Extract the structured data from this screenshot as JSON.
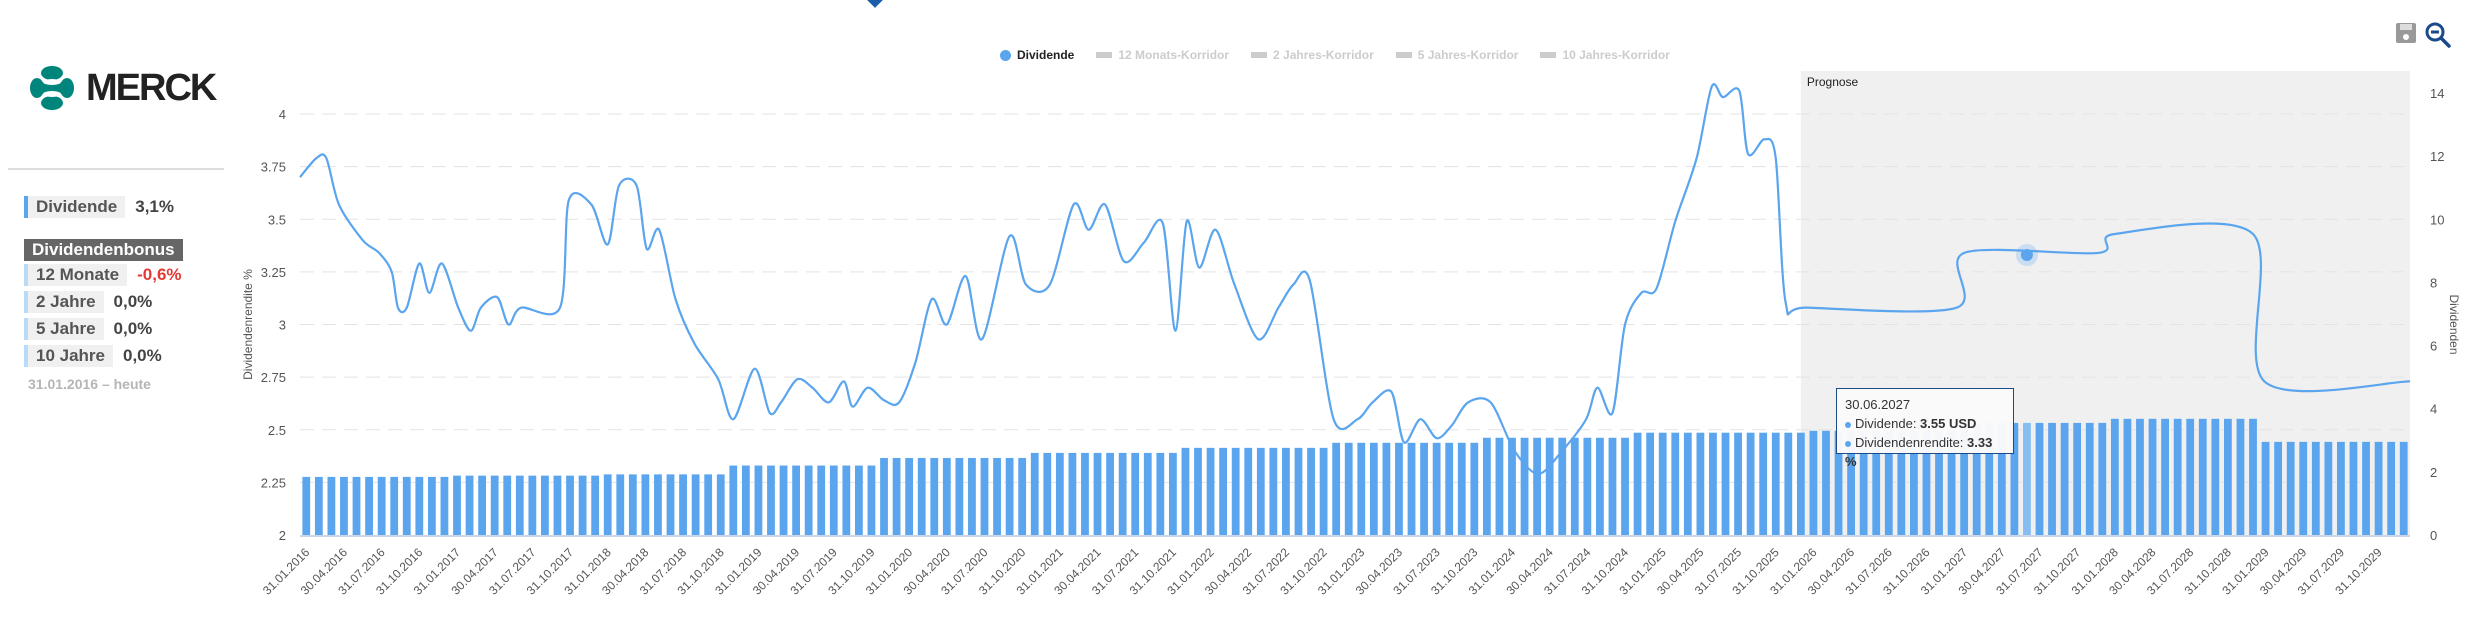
{
  "company": {
    "name": "MERCK",
    "logo_color": "#00857c"
  },
  "summary": {
    "dividend_label": "Dividende",
    "dividend_value": "3,1%",
    "bonus_title": "Dividendenbonus",
    "rows": [
      {
        "label": "12 Monate",
        "value": "-0,6%",
        "negative": true
      },
      {
        "label": "2 Jahre",
        "value": "0,0%",
        "negative": false
      },
      {
        "label": "5 Jahre",
        "value": "0,0%",
        "negative": false
      },
      {
        "label": "10 Jahre",
        "value": "0,0%",
        "negative": false
      }
    ],
    "period": "31.01.2016 – heute"
  },
  "toolbar": {
    "save_icon": "save-icon",
    "zoom_out_icon": "zoom-out-icon"
  },
  "legend": [
    {
      "label": "Dividende",
      "active": true
    },
    {
      "label": "12 Monats-Korridor",
      "active": false
    },
    {
      "label": "2 Jahres-Korridor",
      "active": false
    },
    {
      "label": "5 Jahres-Korridor",
      "active": false
    },
    {
      "label": "10 Jahres-Korridor",
      "active": false
    }
  ],
  "tooltip": {
    "date": "30.06.2027",
    "dividend_label": "Dividende: ",
    "dividend_value": "3.55 USD",
    "yield_label": "Dividendenrendite: ",
    "yield_value": "3.33 %"
  },
  "chart_data": {
    "type": "bar+line",
    "colors": {
      "series": "#5aa5ee",
      "forecast_bg": "#f0f0f0"
    },
    "forecast_label": "Prognose",
    "forecast_start_month": 119.5,
    "x_unit": "months since Jan 2016",
    "months": 168,
    "ylabel_left": "Dividendenrendite %",
    "ylabel_right": "Dividenden",
    "ylim_left": [
      2,
      4
    ],
    "yticks_left": [
      "2",
      "2.25",
      "2.5",
      "2.75",
      "3",
      "3.25",
      "3.5",
      "3.75",
      "4"
    ],
    "ylim_right": [
      0,
      14
    ],
    "yticks_right": [
      "0",
      "2",
      "4",
      "6",
      "8",
      "10",
      "12",
      "14"
    ],
    "xtick_labels": [
      "31.01.2016",
      "30.04.2016",
      "31.07.2016",
      "31.10.2016",
      "31.01.2017",
      "30.04.2017",
      "31.07.2017",
      "31.10.2017",
      "31.01.2018",
      "30.04.2018",
      "31.07.2018",
      "31.10.2018",
      "31.01.2019",
      "30.04.2019",
      "31.07.2019",
      "31.10.2019",
      "31.01.2020",
      "30.04.2020",
      "31.07.2020",
      "31.10.2020",
      "31.01.2021",
      "30.04.2021",
      "31.07.2021",
      "31.10.2021",
      "31.01.2022",
      "30.04.2022",
      "31.07.2022",
      "31.10.2022",
      "31.01.2023",
      "30.04.2023",
      "31.07.2023",
      "31.10.2023",
      "31.01.2024",
      "30.04.2024",
      "31.07.2024",
      "31.10.2024",
      "31.01.2025",
      "30.04.2025",
      "31.07.2025",
      "31.10.2025",
      "31.01.2026",
      "30.04.2026",
      "31.07.2026",
      "31.10.2026",
      "31.01.2027",
      "30.04.2027",
      "31.07.2027",
      "31.10.2027",
      "31.01.2028",
      "30.04.2028",
      "31.07.2028",
      "31.10.2028",
      "31.01.2029",
      "30.04.2029",
      "31.07.2029",
      "31.10.2029"
    ],
    "series": [
      {
        "name": "Dividenden (USD, bars, right axis)",
        "runs": [
          [
            12,
            1.84
          ],
          [
            12,
            1.88
          ],
          [
            10,
            1.92
          ],
          [
            2,
            2.2
          ],
          [
            10,
            2.2
          ],
          [
            2,
            2.44
          ],
          [
            10,
            2.44
          ],
          [
            2,
            2.6
          ],
          [
            10,
            2.6
          ],
          [
            2,
            2.76
          ],
          [
            10,
            2.76
          ],
          [
            2,
            2.92
          ],
          [
            10,
            2.92
          ],
          [
            2,
            3.08
          ],
          [
            10,
            3.08
          ],
          [
            2,
            3.24
          ],
          [
            12,
            3.24
          ],
          [
            12,
            3.3
          ],
          [
            12,
            3.55
          ],
          [
            12,
            3.68
          ],
          [
            12,
            2.95
          ]
        ]
      },
      {
        "name": "Dividendenrendite % (line, left axis)",
        "points": [
          [
            0,
            3.7
          ],
          [
            1.3,
            3.79
          ],
          [
            2.1,
            3.79
          ],
          [
            3.1,
            3.57
          ],
          [
            5,
            3.4
          ],
          [
            6.3,
            3.34
          ],
          [
            7.3,
            3.25
          ],
          [
            7.8,
            3.08
          ],
          [
            8.5,
            3.08
          ],
          [
            9.5,
            3.29
          ],
          [
            10.3,
            3.15
          ],
          [
            11.3,
            3.29
          ],
          [
            12.6,
            3.08
          ],
          [
            13.6,
            2.97
          ],
          [
            14.4,
            3.08
          ],
          [
            15.7,
            3.13
          ],
          [
            16.6,
            3.0
          ],
          [
            17.6,
            3.08
          ],
          [
            20.7,
            3.08
          ],
          [
            21.4,
            3.59
          ],
          [
            23.2,
            3.57
          ],
          [
            24.5,
            3.38
          ],
          [
            25.4,
            3.66
          ],
          [
            26.8,
            3.66
          ],
          [
            27.6,
            3.36
          ],
          [
            28.6,
            3.45
          ],
          [
            29.9,
            3.12
          ],
          [
            31.4,
            2.91
          ],
          [
            33.3,
            2.74
          ],
          [
            34.5,
            2.55
          ],
          [
            36.2,
            2.79
          ],
          [
            37.4,
            2.58
          ],
          [
            38.3,
            2.63
          ],
          [
            39.6,
            2.74
          ],
          [
            40.8,
            2.7
          ],
          [
            42.1,
            2.63
          ],
          [
            43.3,
            2.73
          ],
          [
            44,
            2.61
          ],
          [
            45.2,
            2.7
          ],
          [
            46.5,
            2.64
          ],
          [
            47.7,
            2.63
          ],
          [
            49,
            2.82
          ],
          [
            50.3,
            3.12
          ],
          [
            51.5,
            3.0
          ],
          [
            53,
            3.23
          ],
          [
            54.3,
            2.93
          ],
          [
            56.5,
            3.42
          ],
          [
            57.8,
            3.19
          ],
          [
            59.7,
            3.19
          ],
          [
            61.6,
            3.57
          ],
          [
            62.8,
            3.45
          ],
          [
            64.1,
            3.57
          ],
          [
            65.6,
            3.3
          ],
          [
            67.2,
            3.39
          ],
          [
            68.7,
            3.48
          ],
          [
            69.7,
            2.97
          ],
          [
            70.6,
            3.49
          ],
          [
            71.6,
            3.27
          ],
          [
            72.9,
            3.45
          ],
          [
            74.4,
            3.19
          ],
          [
            76.3,
            2.93
          ],
          [
            77.9,
            3.08
          ],
          [
            79.1,
            3.19
          ],
          [
            80.4,
            3.21
          ],
          [
            82.3,
            2.55
          ],
          [
            84.2,
            2.55
          ],
          [
            85.4,
            2.63
          ],
          [
            86.9,
            2.68
          ],
          [
            87.9,
            2.44
          ],
          [
            89.2,
            2.55
          ],
          [
            90.5,
            2.46
          ],
          [
            91.7,
            2.52
          ],
          [
            93,
            2.63
          ],
          [
            94.8,
            2.63
          ],
          [
            96.7,
            2.4
          ],
          [
            98.6,
            2.29
          ],
          [
            100.5,
            2.4
          ],
          [
            102.4,
            2.55
          ],
          [
            103.3,
            2.7
          ],
          [
            104.5,
            2.58
          ],
          [
            105.5,
            3.0
          ],
          [
            106.8,
            3.15
          ],
          [
            108,
            3.17
          ],
          [
            109.5,
            3.49
          ],
          [
            111.2,
            3.79
          ],
          [
            112.4,
            4.13
          ],
          [
            113.3,
            4.08
          ],
          [
            114.6,
            4.11
          ],
          [
            115.3,
            3.81
          ],
          [
            116.6,
            3.88
          ],
          [
            117.5,
            3.79
          ],
          [
            118.3,
            3.1
          ],
          [
            120,
            3.08
          ],
          [
            131.9,
            3.08
          ],
          [
            132.5,
            3.34
          ],
          [
            143.2,
            3.34
          ],
          [
            144.5,
            3.43
          ],
          [
            155.5,
            3.43
          ],
          [
            156.4,
            2.73
          ],
          [
            168,
            2.73
          ]
        ]
      }
    ],
    "highlight": {
      "month": 137.5,
      "yield": 3.33,
      "dividend": 3.55
    }
  }
}
